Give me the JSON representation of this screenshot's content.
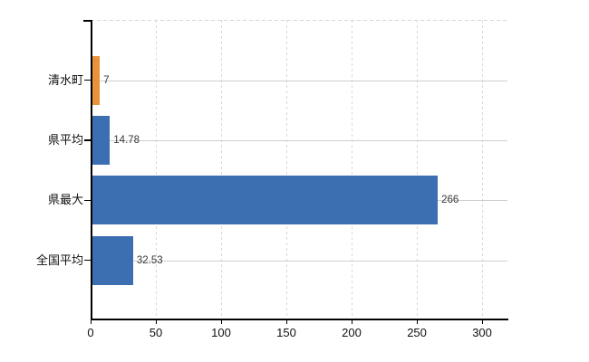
{
  "chart_data": {
    "type": "bar",
    "orientation": "horizontal",
    "title": "",
    "categories": [
      "清水町",
      "県平均",
      "県最大",
      "全国平均"
    ],
    "values": [
      7,
      14.78,
      266,
      32.53
    ],
    "value_labels": [
      "7",
      "14.78",
      "266",
      "32.53"
    ],
    "bar_colors": [
      "#E8923C",
      "#3C6EB2",
      "#3C6EB2",
      "#3C6EB2"
    ],
    "x_ticks": [
      0,
      50,
      100,
      150,
      200,
      250,
      300
    ],
    "x_tick_labels": [
      "0",
      "50",
      "100",
      "150",
      "200",
      "250",
      "300"
    ],
    "xlim": [
      0,
      319.4
    ],
    "grid": true,
    "legend": false
  },
  "colors": {
    "bar_blue": "#3C6EB2",
    "bar_orange": "#E8923C",
    "gridline": "#cfcfcf",
    "axis": "#000000",
    "value_text": "#3a3a3a",
    "tick_text": "#111111",
    "background": "#ffffff"
  }
}
